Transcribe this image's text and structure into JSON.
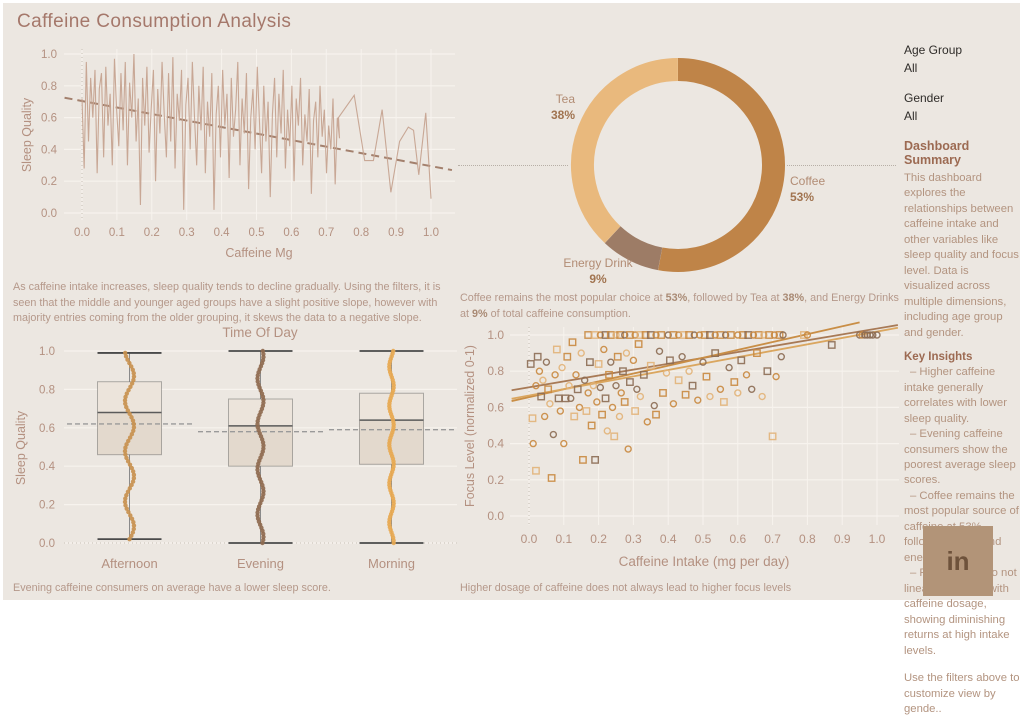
{
  "page": {
    "title": "Caffeine Consumption Analysis"
  },
  "colors": {
    "background": "#ece7e1",
    "title": "#a5786b",
    "axis_text": "#b49181",
    "grid": "#f7f3ee",
    "zeroline": "#c9c1b8",
    "caption": "#b5988a",
    "coffee": "#bf8448",
    "tea": "#e9b97d",
    "energy_drink": "#9d7c66"
  },
  "filters": {
    "age_group_label": "Age Group",
    "age_group_value": "All",
    "gender_label": "Gender",
    "gender_value": "All"
  },
  "sidebar": {
    "summary_title": "Dashboard Summary",
    "summary_text": "This dashboard explores the relationships between caffeine intake and other variables like sleep quality and focus level. Data is visualized across multiple dimensions, including age group and gender.",
    "insights_title": "Key Insights",
    "insights": [
      "– Higher caffeine intake generally correlates with lower sleep quality.",
      "– Evening caffeine consumers show the poorest average sleep scores.",
      "– Coffee remains the most popular source of caffeine at 53%, followed by tea and energy drinks.",
      "– Focus levels do not linearly increase with caffeine dosage, showing diminishing returns at high intake levels."
    ],
    "filters_note": "Use the filters above to customize view by gende..",
    "logo_text": "in"
  },
  "captions": {
    "line": "As caffeine intake increases, sleep quality tends to decline gradually. Using the filters, it is seen that the middle and younger aged groups have a slight positive slope, however with majority entries coming from the older grouping, it skews the data to a negative slope.",
    "donut_parts": [
      "Coffee remains the most popular choice at ",
      "53%",
      ", followed by Tea at ",
      "38%",
      ", and Energy Drinks at ",
      "9%",
      " of total caffeine consumption."
    ],
    "box": "Evening caffeine consumers on average have a lower sleep score.",
    "scatter": "Higher dosage of caffeine does not always lead to higher focus levels"
  },
  "chart_data": [
    {
      "id": "sleep-vs-caffeine",
      "type": "line",
      "xlabel": "Caffeine Mg",
      "ylabel": "Sleep Quality",
      "xlim": [
        -0.05,
        1.07
      ],
      "ylim": [
        0,
        1
      ],
      "xticks": [
        0.0,
        0.1,
        0.2,
        0.3,
        0.4,
        0.5,
        0.6,
        0.7,
        0.8,
        0.9,
        1.0
      ],
      "yticks": [
        0.0,
        0.2,
        0.4,
        0.6,
        0.8,
        1.0
      ],
      "line_color": "#c6a390",
      "series": {
        "x0": 0.0,
        "dx": 0.0062,
        "y": [
          0.72,
          0.28,
          0.95,
          0.45,
          0.85,
          0.6,
          0.9,
          0.25,
          0.78,
          0.88,
          0.35,
          0.92,
          0.55,
          0.75,
          0.3,
          0.97,
          0.65,
          0.42,
          0.88,
          0.52,
          0.95,
          0.3,
          0.82,
          0.6,
          1.0,
          0.45,
          0.72,
          0.05,
          0.85,
          0.55,
          0.92,
          0.38,
          0.66,
          0.9,
          0.2,
          0.78,
          0.5,
          0.95,
          0.62,
          0.35,
          0.88,
          0.45,
          0.98,
          0.28,
          0.75,
          0.58,
          0.9,
          0.02,
          0.68,
          0.85,
          0.4,
          0.95,
          0.6,
          0.3,
          0.8,
          0.52,
          0.92,
          0.25,
          0.7,
          0.48,
          0.88,
          0.02,
          0.62,
          0.8,
          0.35,
          0.9,
          0.55,
          0.75,
          0.22,
          0.85,
          0.48,
          0.65,
          0.95,
          0.3,
          0.72,
          0.5,
          0.88,
          0.15,
          0.6,
          0.78,
          0.4,
          0.92,
          0.58,
          0.25,
          0.8,
          0.45,
          0.7,
          0.1,
          0.62,
          0.85,
          0.35,
          0.75,
          0.5,
          0.9,
          0.28,
          0.65,
          0.42,
          0.8,
          0.2,
          0.72,
          0.55,
          0.85,
          0.3,
          0.62,
          0.45,
          0.78,
          0.12,
          0.58,
          0.7,
          0.35,
          0.8,
          0.48,
          0.65,
          0.25,
          0.55,
          0.4,
          0.72,
          0.18,
          0.6,
          0.47
        ],
        "tail": [
          [
            0.735,
            0.6
          ],
          [
            0.78,
            0.74
          ],
          [
            0.81,
            0.33
          ],
          [
            0.835,
            0.33
          ],
          [
            0.86,
            0.65
          ],
          [
            0.885,
            0.13
          ],
          [
            0.91,
            0.45
          ],
          [
            0.935,
            0.54
          ],
          [
            0.95,
            0.52
          ],
          [
            0.965,
            0.24
          ],
          [
            0.985,
            0.63
          ],
          [
            1.0,
            0.09
          ]
        ]
      },
      "trend": {
        "x1": -0.05,
        "y1": 0.725,
        "x2": 1.06,
        "y2": 0.27,
        "color": "#a3806d",
        "dash": true
      }
    },
    {
      "id": "caffeine-source-share",
      "type": "donut",
      "slices": [
        {
          "label": "Coffee",
          "value": 53,
          "pct_label": "53%",
          "color": "#bf8448"
        },
        {
          "label": "Tea",
          "value": 38,
          "pct_label": "38%",
          "color": "#e9b97d"
        },
        {
          "label": "Energy Drink",
          "value": 9,
          "pct_label": "9%",
          "color": "#9d7c66"
        }
      ],
      "order_clockwise_from_top": [
        "Coffee",
        "Energy Drink",
        "Tea"
      ],
      "label_color": "#b28c74",
      "pct_color": "#a17450"
    },
    {
      "id": "sleep-by-time-of-day",
      "type": "box",
      "title": "Time Of Day",
      "ylabel": "Sleep Quality",
      "yticks": [
        0.0,
        0.2,
        0.4,
        0.6,
        0.8,
        1.0
      ],
      "categories": [
        "Afternoon",
        "Evening",
        "Morning"
      ],
      "stats": [
        {
          "whislo": 0.02,
          "q1": 0.46,
          "med": 0.68,
          "q3": 0.84,
          "whishi": 0.99,
          "mean": 0.62
        },
        {
          "whislo": 0.0,
          "q1": 0.4,
          "med": 0.61,
          "q3": 0.75,
          "whishi": 1.0,
          "mean": 0.58
        },
        {
          "whislo": 0.0,
          "q1": 0.41,
          "med": 0.64,
          "q3": 0.78,
          "whishi": 1.0,
          "mean": 0.59
        }
      ],
      "point_colors": [
        "#c8914f",
        "#8f6b50",
        "#e7a953"
      ],
      "strips": [
        {
          "min": 0.02,
          "max": 0.99,
          "count": 56,
          "jitter": 4.5
        },
        {
          "min": 0.0,
          "max": 1.0,
          "count": 64,
          "jitter": 3.0
        },
        {
          "min": 0.0,
          "max": 1.0,
          "count": 74,
          "jitter": 2.2
        }
      ]
    },
    {
      "id": "focus-vs-caffeine",
      "type": "scatter",
      "xlabel": "Caffeine Intake (mg per day)",
      "ylabel": "Focus Level (normalized 0-1)",
      "xticks": [
        0.0,
        0.1,
        0.2,
        0.3,
        0.4,
        0.5,
        0.6,
        0.7,
        0.8,
        0.9,
        1.0
      ],
      "yticks": [
        0.0,
        0.2,
        0.4,
        0.6,
        0.8,
        1.0
      ],
      "group_colors": [
        "#e2b278",
        "#c9883f",
        "#8c6b53"
      ],
      "points": [
        [
          0.17,
          1.0,
          1,
          1
        ],
        [
          0.19,
          1.0,
          0,
          1
        ],
        [
          0.205,
          1.0,
          1,
          0
        ],
        [
          0.22,
          1.0,
          2,
          1
        ],
        [
          0.235,
          1.0,
          1,
          1
        ],
        [
          0.25,
          1.0,
          0,
          0
        ],
        [
          0.262,
          1.0,
          1,
          1
        ],
        [
          0.275,
          1.0,
          2,
          0
        ],
        [
          0.29,
          1.0,
          1,
          1
        ],
        [
          0.305,
          1.0,
          1,
          0
        ],
        [
          0.32,
          1.0,
          0,
          1
        ],
        [
          0.335,
          1.0,
          1,
          1
        ],
        [
          0.35,
          1.0,
          2,
          1
        ],
        [
          0.365,
          1.0,
          1,
          0
        ],
        [
          0.38,
          1.0,
          1,
          1
        ],
        [
          0.4,
          1.0,
          2,
          0
        ],
        [
          0.415,
          1.0,
          1,
          1
        ],
        [
          0.43,
          1.0,
          1,
          0
        ],
        [
          0.445,
          1.0,
          0,
          1
        ],
        [
          0.46,
          1.0,
          1,
          1
        ],
        [
          0.475,
          1.0,
          2,
          0
        ],
        [
          0.49,
          1.0,
          1,
          0
        ],
        [
          0.505,
          1.0,
          1,
          1
        ],
        [
          0.52,
          1.0,
          2,
          1
        ],
        [
          0.535,
          1.0,
          1,
          0
        ],
        [
          0.55,
          1.0,
          1,
          1
        ],
        [
          0.565,
          1.0,
          2,
          0
        ],
        [
          0.58,
          1.0,
          1,
          1
        ],
        [
          0.6,
          1.0,
          1,
          0
        ],
        [
          0.615,
          1.0,
          1,
          1
        ],
        [
          0.63,
          1.0,
          2,
          1
        ],
        [
          0.645,
          1.0,
          1,
          0
        ],
        [
          0.66,
          1.0,
          1,
          1
        ],
        [
          0.675,
          1.0,
          0,
          0
        ],
        [
          0.69,
          1.0,
          1,
          1
        ],
        [
          0.705,
          1.0,
          1,
          0
        ],
        [
          0.72,
          1.0,
          1,
          1
        ],
        [
          0.73,
          1.0,
          2,
          0
        ],
        [
          0.79,
          1.0,
          0,
          1
        ],
        [
          0.8,
          1.0,
          1,
          0
        ],
        [
          0.87,
          0.945,
          2,
          1
        ],
        [
          0.95,
          1.0,
          2,
          0
        ],
        [
          0.957,
          1.0,
          1,
          0
        ],
        [
          0.965,
          1.0,
          2,
          0
        ],
        [
          0.972,
          1.0,
          2,
          0
        ],
        [
          0.98,
          1.0,
          2,
          0
        ],
        [
          0.988,
          1.0,
          2,
          0
        ],
        [
          1.0,
          1.0,
          2,
          0
        ],
        [
          0.005,
          0.84,
          2,
          1
        ],
        [
          0.01,
          0.54,
          0,
          1
        ],
        [
          0.012,
          0.4,
          1,
          0
        ],
        [
          0.02,
          0.25,
          0,
          1
        ],
        [
          0.02,
          0.72,
          1,
          0
        ],
        [
          0.025,
          0.88,
          2,
          1
        ],
        [
          0.03,
          0.8,
          1,
          0
        ],
        [
          0.035,
          0.66,
          2,
          1
        ],
        [
          0.04,
          0.75,
          0,
          0
        ],
        [
          0.045,
          0.55,
          1,
          0
        ],
        [
          0.05,
          0.85,
          2,
          0
        ],
        [
          0.055,
          0.7,
          1,
          1
        ],
        [
          0.06,
          0.62,
          0,
          0
        ],
        [
          0.065,
          0.21,
          1,
          1
        ],
        [
          0.07,
          0.45,
          2,
          0
        ],
        [
          0.075,
          0.78,
          1,
          0
        ],
        [
          0.08,
          0.92,
          0,
          1
        ],
        [
          0.085,
          0.65,
          2,
          1
        ],
        [
          0.09,
          0.58,
          1,
          0
        ],
        [
          0.095,
          0.82,
          0,
          0
        ],
        [
          0.1,
          0.4,
          1,
          0
        ],
        [
          0.105,
          0.65,
          2,
          1
        ],
        [
          0.11,
          0.88,
          1,
          1
        ],
        [
          0.115,
          0.72,
          0,
          0
        ],
        [
          0.12,
          0.65,
          2,
          0
        ],
        [
          0.125,
          0.96,
          1,
          1
        ],
        [
          0.13,
          0.55,
          0,
          1
        ],
        [
          0.135,
          0.78,
          1,
          0
        ],
        [
          0.14,
          0.7,
          2,
          1
        ],
        [
          0.145,
          0.6,
          1,
          0
        ],
        [
          0.15,
          0.9,
          0,
          0
        ],
        [
          0.155,
          0.31,
          1,
          1
        ],
        [
          0.16,
          0.75,
          2,
          0
        ],
        [
          0.165,
          0.58,
          0,
          1
        ],
        [
          0.17,
          0.68,
          1,
          0
        ],
        [
          0.175,
          0.85,
          2,
          1
        ],
        [
          0.18,
          0.5,
          1,
          1
        ],
        [
          0.185,
          0.72,
          0,
          0
        ],
        [
          0.19,
          0.31,
          2,
          1
        ],
        [
          0.195,
          0.63,
          1,
          0
        ],
        [
          0.2,
          0.84,
          0,
          1
        ],
        [
          0.205,
          0.71,
          2,
          0
        ],
        [
          0.21,
          0.56,
          1,
          1
        ],
        [
          0.215,
          0.92,
          1,
          0
        ],
        [
          0.22,
          0.65,
          2,
          1
        ],
        [
          0.225,
          0.47,
          0,
          0
        ],
        [
          0.23,
          0.78,
          1,
          1
        ],
        [
          0.235,
          0.85,
          2,
          0
        ],
        [
          0.24,
          0.6,
          1,
          0
        ],
        [
          0.245,
          0.44,
          0,
          1
        ],
        [
          0.25,
          0.72,
          2,
          0
        ],
        [
          0.255,
          0.88,
          1,
          1
        ],
        [
          0.26,
          0.55,
          0,
          0
        ],
        [
          0.265,
          0.68,
          1,
          0
        ],
        [
          0.27,
          0.8,
          2,
          1
        ],
        [
          0.275,
          0.63,
          1,
          1
        ],
        [
          0.28,
          0.9,
          0,
          0
        ],
        [
          0.285,
          0.37,
          1,
          0
        ],
        [
          0.29,
          0.74,
          2,
          1
        ],
        [
          0.3,
          0.86,
          1,
          0
        ],
        [
          0.305,
          0.58,
          0,
          1
        ],
        [
          0.31,
          0.7,
          2,
          0
        ],
        [
          0.315,
          0.95,
          1,
          1
        ],
        [
          0.32,
          0.66,
          0,
          0
        ],
        [
          0.33,
          0.78,
          2,
          1
        ],
        [
          0.34,
          0.52,
          1,
          0
        ],
        [
          0.35,
          0.83,
          0,
          1
        ],
        [
          0.36,
          0.61,
          2,
          0
        ],
        [
          0.365,
          0.56,
          1,
          1
        ],
        [
          0.375,
          0.91,
          2,
          0
        ],
        [
          0.385,
          0.68,
          1,
          1
        ],
        [
          0.395,
          0.79,
          0,
          0
        ],
        [
          0.405,
          0.86,
          2,
          1
        ],
        [
          0.415,
          0.62,
          1,
          0
        ],
        [
          0.43,
          0.75,
          0,
          1
        ],
        [
          0.44,
          0.88,
          2,
          0
        ],
        [
          0.45,
          0.67,
          1,
          1
        ],
        [
          0.46,
          0.8,
          0,
          0
        ],
        [
          0.47,
          0.72,
          2,
          1
        ],
        [
          0.485,
          0.64,
          1,
          0
        ],
        [
          0.5,
          0.85,
          2,
          0
        ],
        [
          0.51,
          0.77,
          1,
          1
        ],
        [
          0.52,
          0.66,
          0,
          0
        ],
        [
          0.535,
          0.9,
          2,
          1
        ],
        [
          0.55,
          0.7,
          1,
          0
        ],
        [
          0.56,
          0.63,
          0,
          1
        ],
        [
          0.575,
          0.82,
          2,
          0
        ],
        [
          0.59,
          0.74,
          1,
          1
        ],
        [
          0.6,
          0.68,
          0,
          0
        ],
        [
          0.61,
          0.86,
          2,
          1
        ],
        [
          0.625,
          0.78,
          1,
          0
        ],
        [
          0.64,
          0.7,
          2,
          0
        ],
        [
          0.655,
          0.9,
          1,
          1
        ],
        [
          0.67,
          0.66,
          0,
          0
        ],
        [
          0.685,
          0.8,
          2,
          1
        ],
        [
          0.7,
          0.44,
          0,
          1
        ],
        [
          0.71,
          0.77,
          1,
          0
        ],
        [
          0.725,
          0.88,
          2,
          0
        ]
      ],
      "trends": [
        {
          "x1": -0.05,
          "y1": 0.695,
          "x2": 1.06,
          "y2": 1.055,
          "color": "#a87a56"
        },
        {
          "x1": -0.05,
          "y1": 0.635,
          "x2": 0.95,
          "y2": 1.07,
          "color": "#c98e46"
        },
        {
          "x1": -0.05,
          "y1": 0.648,
          "x2": 1.06,
          "y2": 1.04,
          "color": "#daa65f"
        }
      ]
    }
  ]
}
